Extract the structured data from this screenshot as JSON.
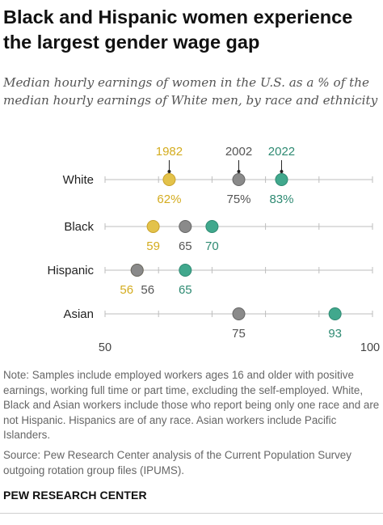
{
  "header": {
    "title": "Black and Hispanic women experience the largest gender wage gap",
    "subtitle": "Median hourly earnings of women in the U.S. as a % of the median hourly earnings of White men, by race and ethnicity"
  },
  "colors": {
    "1982": "#e3c24a",
    "2002": "#8a8a8a",
    "2022": "#41a88d",
    "label_1982": "#d4ac1f",
    "label_2002": "#555555",
    "label_2022": "#2e8a72"
  },
  "chart_data": {
    "type": "dot",
    "x_range": [
      50,
      100
    ],
    "tick_labels": [
      "50",
      "100"
    ],
    "years": [
      "1982",
      "2002",
      "2022"
    ],
    "categories": [
      "White",
      "Black",
      "Hispanic",
      "Asian"
    ],
    "series": [
      {
        "name": "1982",
        "values": [
          62,
          59,
          56,
          null
        ]
      },
      {
        "name": "2002",
        "values": [
          75,
          65,
          56,
          75
        ]
      },
      {
        "name": "2022",
        "values": [
          83,
          70,
          65,
          93
        ]
      }
    ],
    "point_labels": [
      [
        "62%",
        "75%",
        "83%"
      ],
      [
        "59",
        "65",
        "70"
      ],
      [
        "56",
        "56",
        "65"
      ],
      [
        "",
        "75",
        "93"
      ]
    ]
  },
  "footer": {
    "note": "Note: Samples include employed workers ages 16 and older with positive earnings, working full time or part time, excluding the self-employed. White, Black and Asian workers include those who report being only one race and are not Hispanic. Hispanics are of any race. Asian workers include Pacific Islanders.",
    "source": "Source: Pew Research Center analysis of the Current Population Survey outgoing rotation group files (IPUMS).",
    "brand": "PEW RESEARCH CENTER"
  }
}
